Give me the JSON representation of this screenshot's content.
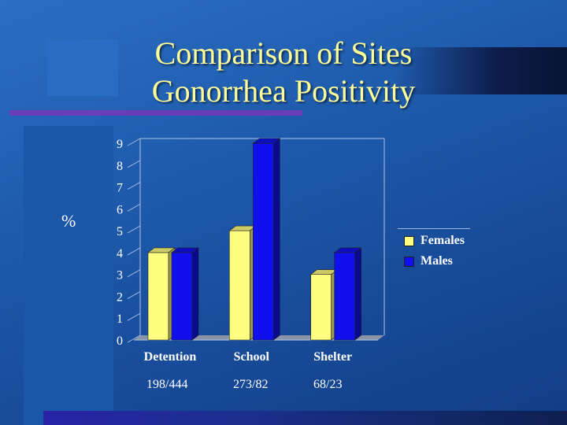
{
  "slide": {
    "title_line1": "Comparison of Sites",
    "title_line2": "Gonorrhea Positivity",
    "y_axis_symbol": "%"
  },
  "chart_data": {
    "type": "bar",
    "categories": [
      "Detention",
      "School",
      "Shelter"
    ],
    "series": [
      {
        "name": "Females",
        "values": [
          4,
          5,
          3
        ],
        "color": "#ffff80"
      },
      {
        "name": "Males",
        "values": [
          4,
          9,
          4
        ],
        "color": "#1010ee"
      }
    ],
    "ylim": [
      0,
      9
    ],
    "yticks": [
      "0",
      "1",
      "2",
      "3",
      "4",
      "5",
      "6",
      "7",
      "8",
      "9"
    ],
    "ylabel": "%",
    "legend_position": "right",
    "grid": false,
    "counts": [
      "198/444",
      "273/82",
      "68/23"
    ]
  }
}
